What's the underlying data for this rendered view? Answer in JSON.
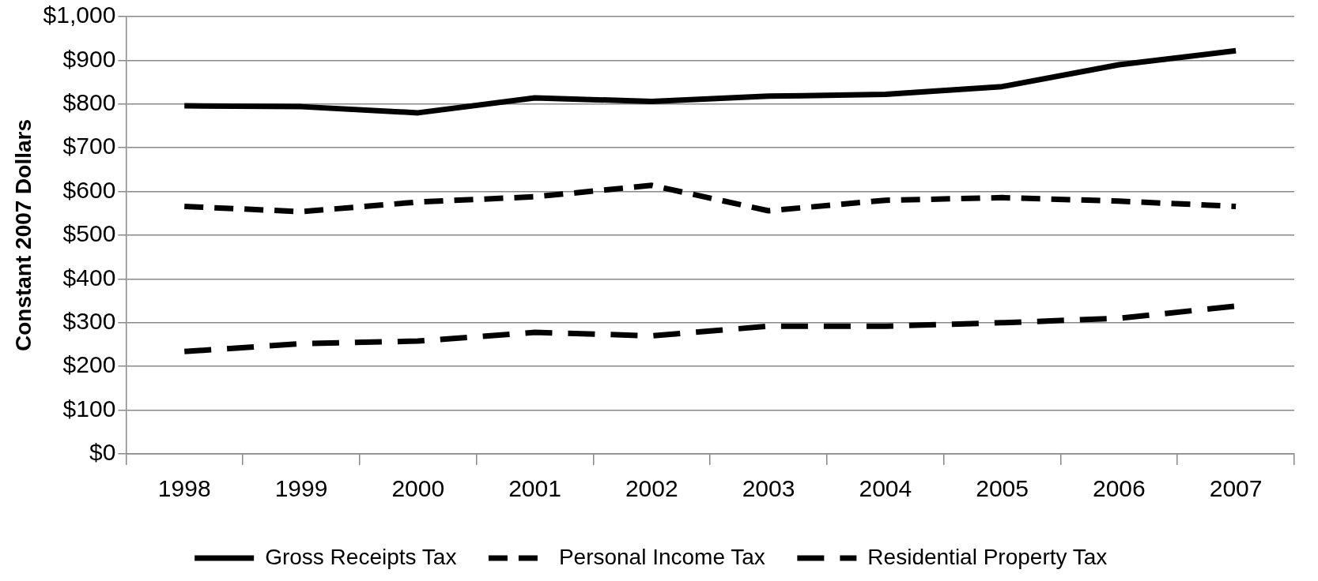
{
  "chart_data": {
    "type": "line",
    "ylabel": "Constant 2007 Dollars",
    "categories": [
      "1998",
      "1999",
      "2000",
      "2001",
      "2002",
      "2003",
      "2004",
      "2005",
      "2006",
      "2007"
    ],
    "series": [
      {
        "name": "Gross Receipts Tax",
        "color": "#000000",
        "line_style": "solid",
        "values": [
          796,
          794,
          780,
          814,
          806,
          818,
          822,
          840,
          890,
          922
        ]
      },
      {
        "name": "Personal Income Tax",
        "color": "#000000",
        "line_style": "dashed",
        "values": [
          566,
          554,
          576,
          588,
          614,
          556,
          580,
          586,
          578,
          566
        ]
      },
      {
        "name": "Residential Property Tax",
        "color": "#000000",
        "line_style": "dashed",
        "values": [
          234,
          252,
          258,
          278,
          270,
          292,
          292,
          300,
          310,
          338
        ]
      }
    ],
    "ylim": [
      0,
      1000
    ],
    "yticks": [
      {
        "value": 0,
        "label": "$0"
      },
      {
        "value": 100,
        "label": "$100"
      },
      {
        "value": 200,
        "label": "$200"
      },
      {
        "value": 300,
        "label": "$300"
      },
      {
        "value": 400,
        "label": "$400"
      },
      {
        "value": 500,
        "label": "$500"
      },
      {
        "value": 600,
        "label": "$600"
      },
      {
        "value": 700,
        "label": "$700"
      },
      {
        "value": 800,
        "label": "$800"
      },
      {
        "value": 900,
        "label": "$900"
      },
      {
        "value": 1000,
        "label": "$1,000"
      }
    ],
    "grid": "y",
    "legend": "bottom",
    "marker": "none"
  }
}
